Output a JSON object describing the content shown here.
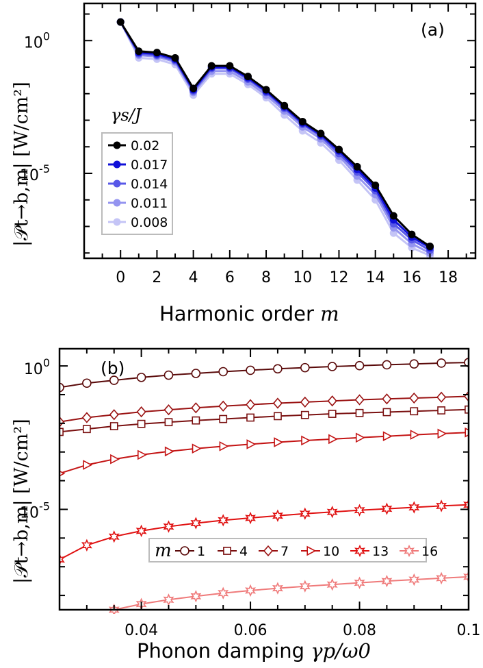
{
  "chart_data": [
    {
      "type": "line",
      "panel": "(a)",
      "xlabel_prefix": "Harmonic order ",
      "xlabel_var": "m",
      "ylabel": "|𝒫t→b,m| [W/cm²]",
      "yscale": "log",
      "xlim": [
        -2,
        19.5
      ],
      "ylim_log10": [
        -8.2,
        1.4
      ],
      "x_ticks": [
        0,
        2,
        4,
        6,
        8,
        10,
        12,
        14,
        16,
        18
      ],
      "y_ticks": [
        {
          "label": "10",
          "exp": "0",
          "value_log10": 0
        },
        {
          "label": "10",
          "exp": "-5",
          "value_log10": -5
        }
      ],
      "legend_title": "γs/J",
      "legend_position": "left",
      "x": [
        0,
        1,
        2,
        3,
        4,
        5,
        6,
        7,
        8,
        9,
        10,
        11,
        12,
        13,
        14,
        15,
        16,
        17
      ],
      "series": [
        {
          "name": "0.02",
          "color": "#000000",
          "values_log10": [
            0.7,
            -0.4,
            -0.45,
            -0.65,
            -1.8,
            -0.95,
            -0.95,
            -1.35,
            -1.85,
            -2.45,
            -3.05,
            -3.5,
            -4.1,
            -4.75,
            -5.45,
            -6.6,
            -7.3,
            -7.75
          ]
        },
        {
          "name": "0.017",
          "color": "#1010d8",
          "values_log10": [
            0.7,
            -0.45,
            -0.5,
            -0.7,
            -1.85,
            -1.0,
            -1.0,
            -1.4,
            -1.9,
            -2.5,
            -3.1,
            -3.55,
            -4.15,
            -4.85,
            -5.55,
            -6.75,
            -7.4,
            -7.8
          ]
        },
        {
          "name": "0.014",
          "color": "#5858e8",
          "values_log10": [
            0.7,
            -0.5,
            -0.55,
            -0.75,
            -1.9,
            -1.05,
            -1.05,
            -1.45,
            -1.95,
            -2.55,
            -3.15,
            -3.6,
            -4.25,
            -4.95,
            -5.65,
            -6.9,
            -7.5,
            -7.9
          ]
        },
        {
          "name": "0.011",
          "color": "#9494f0",
          "values_log10": [
            0.7,
            -0.55,
            -0.6,
            -0.8,
            -1.95,
            -1.15,
            -1.15,
            -1.55,
            -2.05,
            -2.65,
            -3.25,
            -3.7,
            -4.35,
            -5.1,
            -5.8,
            -7.05,
            -7.65,
            -8.0
          ]
        },
        {
          "name": "0.008",
          "color": "#c4c4f6",
          "values_log10": [
            0.7,
            -0.65,
            -0.7,
            -0.9,
            -2.05,
            -1.25,
            -1.25,
            -1.65,
            -2.15,
            -2.8,
            -3.4,
            -3.85,
            -4.5,
            -5.25,
            -6.0,
            -7.25,
            -7.8,
            -8.1
          ]
        }
      ]
    },
    {
      "type": "line",
      "panel": "(b)",
      "xlabel_prefix": "Phonon damping ",
      "xlabel_var": "γp/ω0",
      "ylabel": "|𝒫t→b,m| [W/cm²]",
      "yscale": "log",
      "xlim": [
        0.025,
        0.1
      ],
      "ylim_log10": [
        -8.5,
        0.6
      ],
      "x_ticks": [
        0.04,
        0.06,
        0.08,
        0.1
      ],
      "x_tick_labels": [
        "0.04",
        "0.06",
        "0.08",
        "0.1"
      ],
      "y_ticks": [
        {
          "label": "10",
          "exp": "0",
          "value_log10": 0
        },
        {
          "label": "10",
          "exp": "-5",
          "value_log10": -5
        }
      ],
      "legend_title": "m",
      "legend_position": "bottom-right",
      "x": [
        0.025,
        0.03,
        0.035,
        0.04,
        0.045,
        0.05,
        0.055,
        0.06,
        0.065,
        0.07,
        0.075,
        0.08,
        0.085,
        0.09,
        0.095,
        0.1
      ],
      "series": [
        {
          "name": "1",
          "marker": "circle",
          "color": "#5a0a0a",
          "values_log10": [
            -0.75,
            -0.6,
            -0.5,
            -0.4,
            -0.32,
            -0.26,
            -0.2,
            -0.15,
            -0.1,
            -0.06,
            -0.02,
            0.01,
            0.04,
            0.07,
            0.1,
            0.12
          ]
        },
        {
          "name": "4",
          "marker": "square",
          "color": "#7a1010",
          "values_log10": [
            -2.3,
            -2.2,
            -2.1,
            -2.02,
            -1.96,
            -1.9,
            -1.85,
            -1.8,
            -1.75,
            -1.71,
            -1.67,
            -1.64,
            -1.61,
            -1.58,
            -1.55,
            -1.52
          ]
        },
        {
          "name": "7",
          "marker": "diamond",
          "color": "#9a1212",
          "values_log10": [
            -1.95,
            -1.8,
            -1.7,
            -1.6,
            -1.53,
            -1.46,
            -1.4,
            -1.35,
            -1.3,
            -1.26,
            -1.22,
            -1.18,
            -1.15,
            -1.12,
            -1.09,
            -1.06
          ]
        },
        {
          "name": "10",
          "marker": "triangle",
          "color": "#c41414",
          "values_log10": [
            -3.75,
            -3.45,
            -3.25,
            -3.1,
            -2.98,
            -2.88,
            -2.8,
            -2.73,
            -2.66,
            -2.6,
            -2.55,
            -2.5,
            -2.45,
            -2.4,
            -2.36,
            -2.32
          ]
        },
        {
          "name": "13",
          "marker": "star",
          "color": "#e01010",
          "values_log10": [
            -6.75,
            -6.25,
            -5.95,
            -5.75,
            -5.6,
            -5.48,
            -5.38,
            -5.3,
            -5.22,
            -5.15,
            -5.09,
            -5.03,
            -4.98,
            -4.93,
            -4.88,
            -4.84
          ]
        },
        {
          "name": "16",
          "marker": "star",
          "color": "#ef7a7a",
          "values_log10": [
            null,
            null,
            -8.5,
            -8.3,
            -8.15,
            -8.03,
            -7.92,
            -7.83,
            -7.75,
            -7.68,
            -7.62,
            -7.56,
            -7.5,
            -7.45,
            -7.4,
            -7.35
          ]
        }
      ]
    }
  ]
}
